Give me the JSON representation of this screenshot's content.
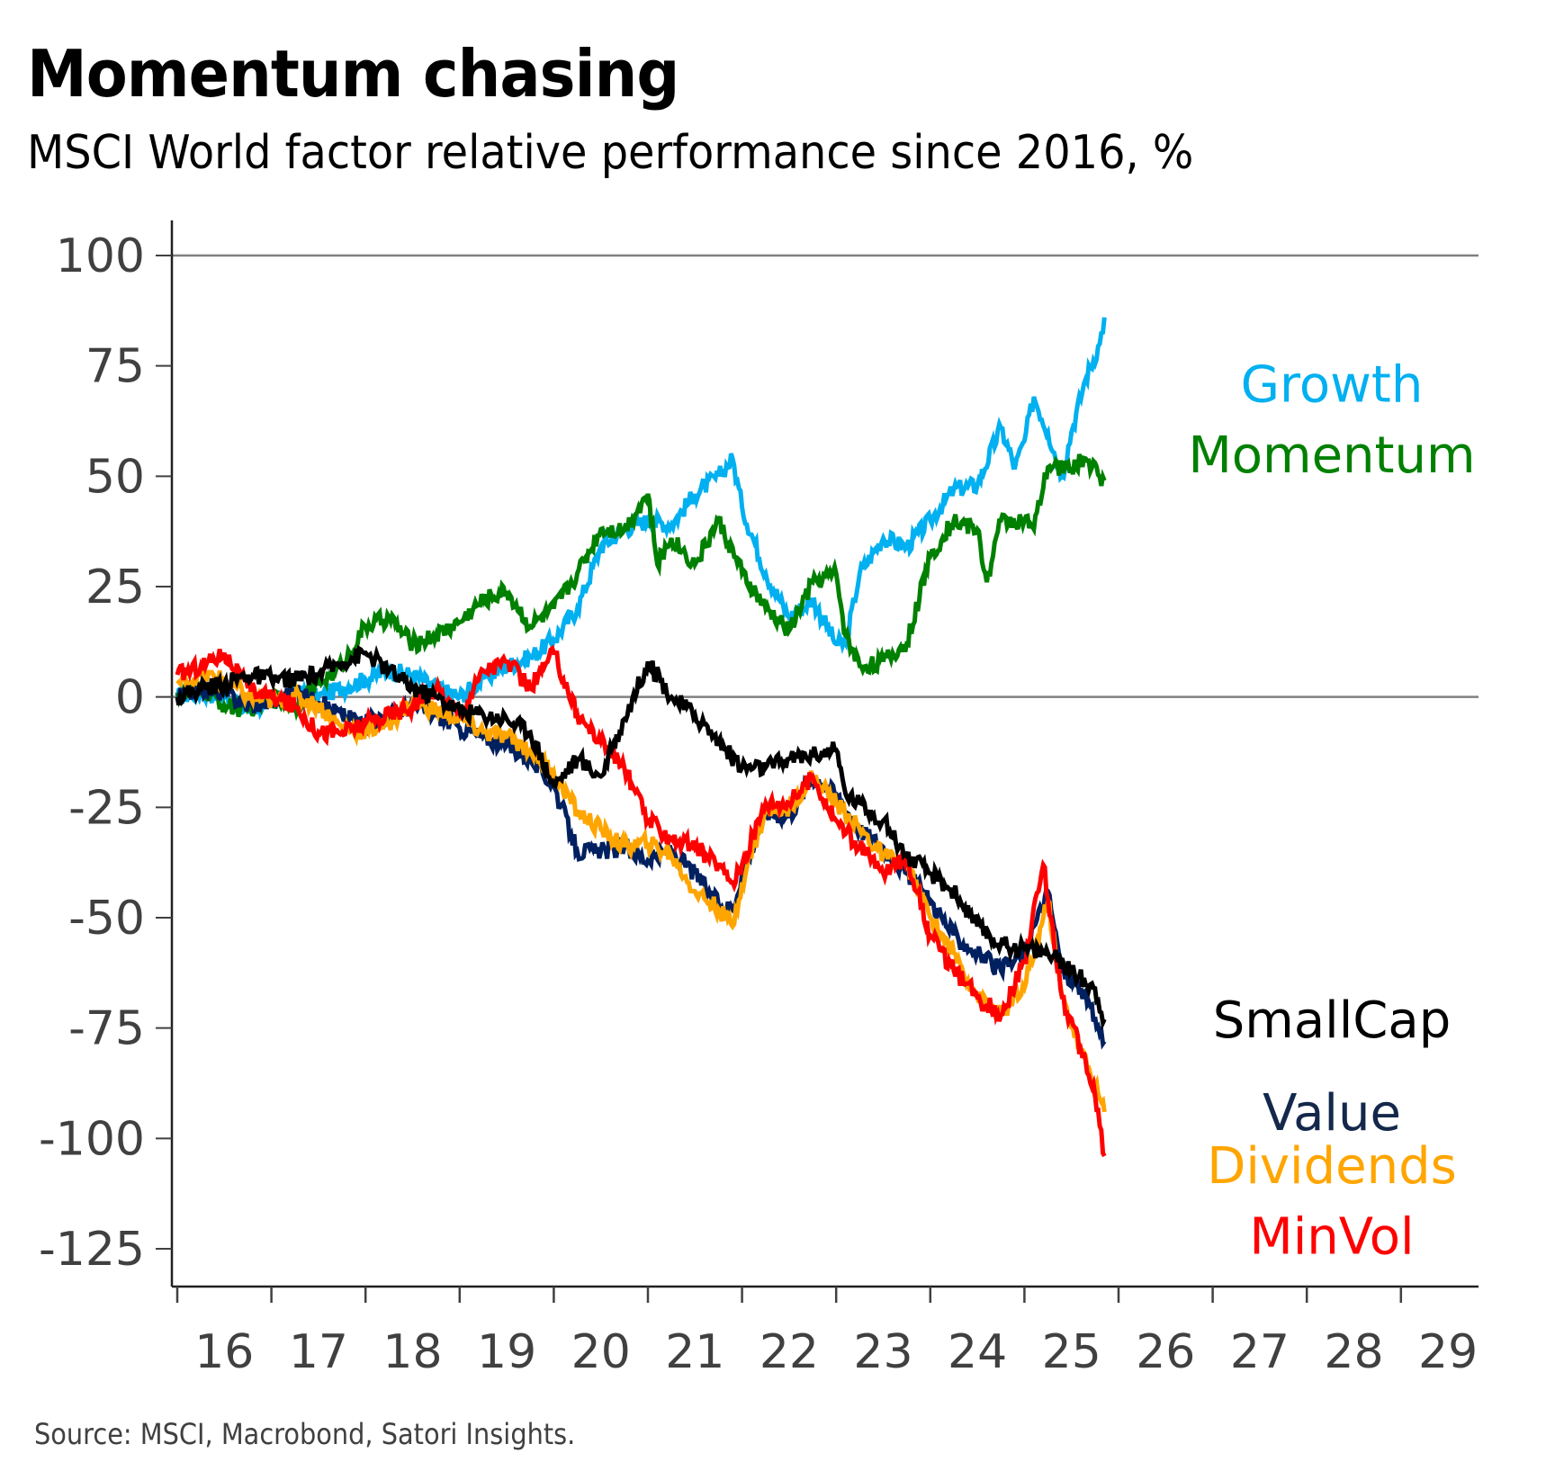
{
  "chart_data": {
    "type": "line",
    "title": "Momentum chasing",
    "subtitle": "MSCI World factor relative performance since 2016, %",
    "source": "Source: MSCI, Macrobond, Satori Insights.",
    "xlabel": "",
    "ylabel": "",
    "xlim": [
      2016,
      2029.9
    ],
    "ylim": [
      -133,
      108
    ],
    "yticks": [
      100,
      75,
      50,
      25,
      0,
      -25,
      -50,
      -75,
      -100,
      -125
    ],
    "ytick_labels": [
      "100",
      "75",
      "50",
      "25",
      "0",
      "-25",
      "-50",
      "-75",
      "-100",
      "-125"
    ],
    "xticks": [
      2016,
      2017,
      2018,
      2019,
      2020,
      2021,
      2022,
      2023,
      2024,
      2025,
      2026,
      2027,
      2028,
      2029
    ],
    "xtick_labels": [
      "16",
      "17",
      "18",
      "19",
      "20",
      "21",
      "22",
      "23",
      "24",
      "25",
      "26",
      "27",
      "28",
      "29"
    ],
    "gridlines": [
      100,
      0
    ],
    "grid": "horizontal at 100 and 0",
    "legend": "inline labels at right of lines",
    "series": [
      {
        "name": "Growth",
        "color": "#00B0F0",
        "x": [
          2016.0,
          2016.25,
          2016.5,
          2016.75,
          2017.0,
          2017.25,
          2017.5,
          2017.75,
          2018.0,
          2018.25,
          2018.5,
          2018.75,
          2019.0,
          2019.25,
          2019.5,
          2019.75,
          2020.0,
          2020.25,
          2020.5,
          2020.75,
          2021.0,
          2021.25,
          2021.5,
          2021.75,
          2021.9,
          2022.0,
          2022.25,
          2022.5,
          2022.75,
          2023.0,
          2023.1,
          2023.25,
          2023.5,
          2023.75,
          2024.0,
          2024.25,
          2024.5,
          2024.75,
          2024.9,
          2025.0,
          2025.1,
          2025.25,
          2025.4,
          2025.5,
          2025.65,
          2025.8,
          2025.85
        ],
        "values": [
          0,
          1,
          0,
          -3,
          -1,
          1,
          0,
          2,
          4,
          6,
          5,
          2,
          0,
          4,
          7,
          9,
          13,
          20,
          34,
          38,
          40,
          39,
          46,
          50,
          54,
          43,
          28,
          18,
          22,
          12,
          12,
          28,
          36,
          34,
          40,
          47,
          48,
          61,
          52,
          58,
          68,
          60,
          50,
          60,
          72,
          80,
          86
        ]
      },
      {
        "name": "Momentum",
        "color": "#008000",
        "x": [
          2016.0,
          2016.25,
          2016.5,
          2016.75,
          2017.0,
          2017.25,
          2017.5,
          2017.75,
          2018.0,
          2018.25,
          2018.5,
          2018.75,
          2019.0,
          2019.25,
          2019.5,
          2019.75,
          2020.0,
          2020.25,
          2020.5,
          2020.75,
          2021.0,
          2021.1,
          2021.25,
          2021.5,
          2021.75,
          2022.0,
          2022.25,
          2022.5,
          2022.75,
          2023.0,
          2023.1,
          2023.25,
          2023.5,
          2023.75,
          2024.0,
          2024.25,
          2024.5,
          2024.6,
          2024.75,
          2025.0,
          2025.1,
          2025.25,
          2025.5,
          2025.65,
          2025.85
        ],
        "values": [
          1,
          2,
          -2,
          -3,
          0,
          -2,
          3,
          7,
          16,
          18,
          12,
          14,
          17,
          22,
          24,
          16,
          20,
          28,
          38,
          38,
          46,
          30,
          36,
          30,
          40,
          28,
          20,
          15,
          26,
          28,
          14,
          7,
          8,
          12,
          32,
          40,
          38,
          26,
          40,
          40,
          38,
          52,
          52,
          54,
          49
        ]
      },
      {
        "name": "SmallCap",
        "color": "#000000",
        "x": [
          2016.0,
          2016.25,
          2016.5,
          2016.75,
          2017.0,
          2017.25,
          2017.5,
          2017.75,
          2018.0,
          2018.25,
          2018.5,
          2018.75,
          2019.0,
          2019.25,
          2019.5,
          2019.75,
          2020.0,
          2020.25,
          2020.5,
          2020.75,
          2021.0,
          2021.25,
          2021.5,
          2021.75,
          2022.0,
          2022.25,
          2022.5,
          2022.75,
          2023.0,
          2023.1,
          2023.25,
          2023.5,
          2023.75,
          2024.0,
          2024.25,
          2024.5,
          2024.75,
          2025.0,
          2025.25,
          2025.5,
          2025.75,
          2025.85
        ],
        "values": [
          0,
          2,
          3,
          5,
          4,
          4,
          5,
          8,
          10,
          6,
          2,
          0,
          -3,
          -4,
          -5,
          -8,
          -20,
          -14,
          -18,
          -5,
          8,
          0,
          -4,
          -10,
          -16,
          -16,
          -14,
          -13,
          -12,
          -22,
          -24,
          -28,
          -36,
          -40,
          -44,
          -52,
          -56,
          -57,
          -58,
          -62,
          -66,
          -73
        ]
      },
      {
        "name": "Value",
        "color": "#002060",
        "x": [
          2016.0,
          2016.25,
          2016.5,
          2016.75,
          2017.0,
          2017.25,
          2017.5,
          2017.75,
          2018.0,
          2018.25,
          2018.5,
          2018.75,
          2019.0,
          2019.25,
          2019.5,
          2019.75,
          2020.0,
          2020.25,
          2020.5,
          2020.75,
          2021.0,
          2021.25,
          2021.5,
          2021.75,
          2021.9,
          2022.0,
          2022.25,
          2022.5,
          2022.75,
          2023.0,
          2023.25,
          2023.5,
          2023.75,
          2024.0,
          2024.25,
          2024.5,
          2024.75,
          2025.0,
          2025.25,
          2025.4,
          2025.6,
          2025.85
        ],
        "values": [
          0,
          2,
          1,
          -2,
          -1,
          1,
          -1,
          -4,
          -6,
          -4,
          -2,
          -4,
          -7,
          -9,
          -11,
          -14,
          -20,
          -35,
          -35,
          -34,
          -37,
          -35,
          -40,
          -47,
          -48,
          -40,
          -26,
          -27,
          -18,
          -22,
          -30,
          -34,
          -40,
          -46,
          -54,
          -58,
          -62,
          -58,
          -44,
          -62,
          -66,
          -78
        ]
      },
      {
        "name": "Dividends",
        "color": "#FFA500",
        "x": [
          2016.0,
          2016.25,
          2016.5,
          2016.75,
          2017.0,
          2017.25,
          2017.5,
          2017.75,
          2018.0,
          2018.25,
          2018.5,
          2018.75,
          2019.0,
          2019.25,
          2019.5,
          2019.75,
          2020.0,
          2020.25,
          2020.5,
          2020.75,
          2021.0,
          2021.25,
          2021.5,
          2021.75,
          2021.9,
          2022.0,
          2022.25,
          2022.5,
          2022.75,
          2023.0,
          2023.25,
          2023.5,
          2023.75,
          2024.0,
          2024.25,
          2024.5,
          2024.75,
          2025.0,
          2025.25,
          2025.4,
          2025.6,
          2025.75,
          2025.85
        ],
        "values": [
          3,
          5,
          4,
          0,
          -1,
          0,
          -2,
          -7,
          -8,
          -6,
          -1,
          -3,
          -5,
          -8,
          -9,
          -12,
          -17,
          -26,
          -30,
          -34,
          -33,
          -36,
          -44,
          -48,
          -52,
          -42,
          -26,
          -25,
          -18,
          -24,
          -30,
          -36,
          -38,
          -50,
          -58,
          -68,
          -72,
          -66,
          -46,
          -68,
          -80,
          -88,
          -94
        ]
      },
      {
        "name": "MinVol",
        "color": "#FF0000",
        "x": [
          2016.0,
          2016.25,
          2016.5,
          2016.75,
          2017.0,
          2017.25,
          2017.5,
          2017.75,
          2018.0,
          2018.25,
          2018.5,
          2018.75,
          2019.0,
          2019.25,
          2019.5,
          2019.75,
          2020.0,
          2020.25,
          2020.5,
          2020.75,
          2021.0,
          2021.25,
          2021.5,
          2021.75,
          2021.9,
          2022.0,
          2022.25,
          2022.5,
          2022.75,
          2023.0,
          2023.25,
          2023.5,
          2023.75,
          2024.0,
          2024.25,
          2024.5,
          2024.75,
          2025.0,
          2025.2,
          2025.4,
          2025.6,
          2025.75,
          2025.85
        ],
        "values": [
          5,
          7,
          10,
          2,
          0,
          -2,
          -8,
          -8,
          -6,
          -4,
          -2,
          2,
          -4,
          6,
          8,
          2,
          10,
          -4,
          -10,
          -16,
          -28,
          -32,
          -34,
          -38,
          -42,
          -38,
          -24,
          -24,
          -18,
          -28,
          -34,
          -40,
          -36,
          -54,
          -62,
          -68,
          -72,
          -60,
          -38,
          -68,
          -80,
          -90,
          -104
        ]
      }
    ],
    "labels": [
      {
        "text": "Growth",
        "series": "Growth",
        "color": "#00B0F0",
        "anchor_value": 71
      },
      {
        "text": "Momentum",
        "series": "Momentum",
        "color": "#008000",
        "anchor_value": 55
      },
      {
        "text": "SmallCap",
        "series": "SmallCap",
        "color": "#000000",
        "anchor_value": -73
      },
      {
        "text": "Value",
        "series": "Value",
        "color": "#14284B",
        "anchor_value": -94
      },
      {
        "text": "Dividends",
        "series": "Dividends",
        "color": "#FFA500",
        "anchor_value": -106
      },
      {
        "text": "MinVol",
        "series": "MinVol",
        "color": "#FF0000",
        "anchor_value": -122
      }
    ]
  }
}
